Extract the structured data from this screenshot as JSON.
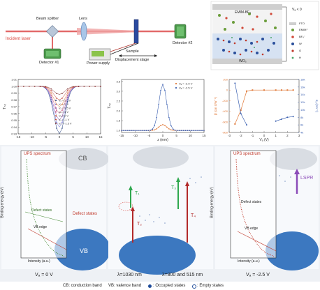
{
  "setup": {
    "incident_label": "Incident laser",
    "beam_splitter_label": "Beam splitter",
    "lens_label": "Lens",
    "detector1_label": "Detector #1",
    "detector2_label": "Detector #2",
    "power_supply_label": "Power supply",
    "sample_label": "Sample",
    "displacement_label": "Displacement stage"
  },
  "cell": {
    "va_label": "Vₐ < 0",
    "emim_label": "EMIM-BF₄",
    "wo3_label": "WO₃",
    "legend": [
      "FTO",
      "EMIM⁺",
      "BF₄⁻",
      "W",
      "O",
      "H"
    ],
    "colors": {
      "fto": "#cfcfcf",
      "emim": "#6a9d3a",
      "bf4": "#d14a3a",
      "w": "#2a4f9b",
      "o": "#c0392b",
      "h": "#4aa56a"
    }
  },
  "chart_data": [
    {
      "type": "line",
      "ylabel": "Tₙₒ",
      "xlim": [
        -15,
        15
      ],
      "ylim": [
        0.93,
        1.01
      ],
      "xticks": [
        -15,
        -10,
        -5,
        0,
        5,
        10,
        15
      ],
      "yticks": [
        1.01,
        1.0,
        0.99,
        0.98,
        0.97,
        0.96,
        0.95,
        0.94,
        0.93
      ],
      "series": [
        {
          "name": "Vₐ = 2.5 V",
          "color": "#1f3b7a",
          "depth": 0.07
        },
        {
          "name": "Vₐ = 2 V",
          "color": "#6b6bd6",
          "depth": 0.06
        },
        {
          "name": "Vₐ = 1.5 V",
          "color": "#8b4ba8",
          "depth": 0.05
        },
        {
          "name": "Vₐ = 1 V",
          "color": "#c24f7a",
          "depth": 0.04
        },
        {
          "name": "Vₐ = 0 V",
          "color": "#e07a3a",
          "depth": 0.03
        },
        {
          "name": "Vₐ = -1 V",
          "color": "#c0392b",
          "depth": 0.02
        },
        {
          "name": "Vₐ = -1.5 V",
          "color": "#7a2b2b",
          "depth": 0.012
        }
      ]
    },
    {
      "type": "line",
      "ylabel": "Tₙₒ",
      "xlabel": "z (mm)",
      "xlim": [
        -15,
        15
      ],
      "ylim": [
        0.9,
        3.6
      ],
      "xticks": [
        -15,
        -10,
        -5,
        0,
        5,
        10,
        15
      ],
      "yticks": [
        1.0,
        1.5,
        2.0,
        2.5,
        3.0,
        3.5
      ],
      "series": [
        {
          "name": "Vₐ = -2.0 V",
          "color": "#e07a3a",
          "peak": 1.3
        },
        {
          "name": "Vₐ = -2.5 V",
          "color": "#3a5fb0",
          "peak": 3.35
        }
      ]
    },
    {
      "type": "line",
      "xlabel": "Vₐ (V)",
      "ylabel": "β (cm GW⁻¹)",
      "y2label": "σₐ (cm⁻¹)",
      "xlim": [
        -3,
        3
      ],
      "ylim": [
        -800,
        200
      ],
      "y2lim": [
        4000,
        18000
      ],
      "xticks": [
        -3,
        -2,
        -1,
        0,
        1,
        2,
        3
      ],
      "yticks": [
        200,
        0,
        -200,
        -400,
        -600,
        -800
      ],
      "y2ticks": [
        18000,
        16000,
        14000,
        12000,
        10000,
        8000,
        6000,
        4000
      ],
      "series": [
        {
          "name": "β",
          "color": "#e07a3a",
          "x": [
            -2.5,
            -2,
            -1.5,
            -1,
            0,
            1,
            1.5,
            2,
            2.5
          ],
          "y": [
            -640,
            -380,
            -20,
            0,
            0,
            0,
            0,
            0,
            0
          ]
        },
        {
          "name": "σₐ",
          "color": "#3a5fb0",
          "x": [
            -2.5,
            -2,
            -1.5
          ],
          "y": [
            17000,
            9000,
            6000
          ],
          "x2": [
            1,
            1.5,
            2,
            2.5
          ],
          "y2": [
            7000,
            7500,
            8000,
            8200
          ]
        }
      ]
    }
  ],
  "bands": {
    "panel1": {
      "ups": "UPS spectrum",
      "cb": "CB",
      "vb": "VB",
      "defect_states": "Defect states",
      "defect_states2": "Defect states",
      "vb_edge": "VB edge",
      "xlabel": "Intensity (a.u.)",
      "ylabel": "Binding energy (eV)",
      "yticks": [
        "-2",
        "-1",
        "0",
        "1",
        "2",
        "3",
        "4",
        "5"
      ],
      "va": "Vₐ = 0 V"
    },
    "panel2": {
      "t1": "T₁",
      "t2": "T₂",
      "t3": "T₃",
      "t4": "T₄",
      "caption_a": "λ=1030 nm",
      "caption_b": "λ=800 and 515 nm"
    },
    "panel3": {
      "ups": "UPS spectrum",
      "defect_states": "Defect states",
      "vb_edge": "VB edge",
      "lspr": "LSPR",
      "xlabel": "Intensity (a.u.)",
      "ylabel": "Binding energy (eV)",
      "yticks": [
        "-2",
        "-1",
        "0",
        "1",
        "2",
        "3",
        "4",
        "5"
      ],
      "va": "Vₐ = -2.5 V"
    },
    "footer": {
      "cb": "CB: conduction band",
      "vb": "VB: valence band",
      "occupied": ": Occupied states",
      "empty": ": Empty states"
    }
  }
}
